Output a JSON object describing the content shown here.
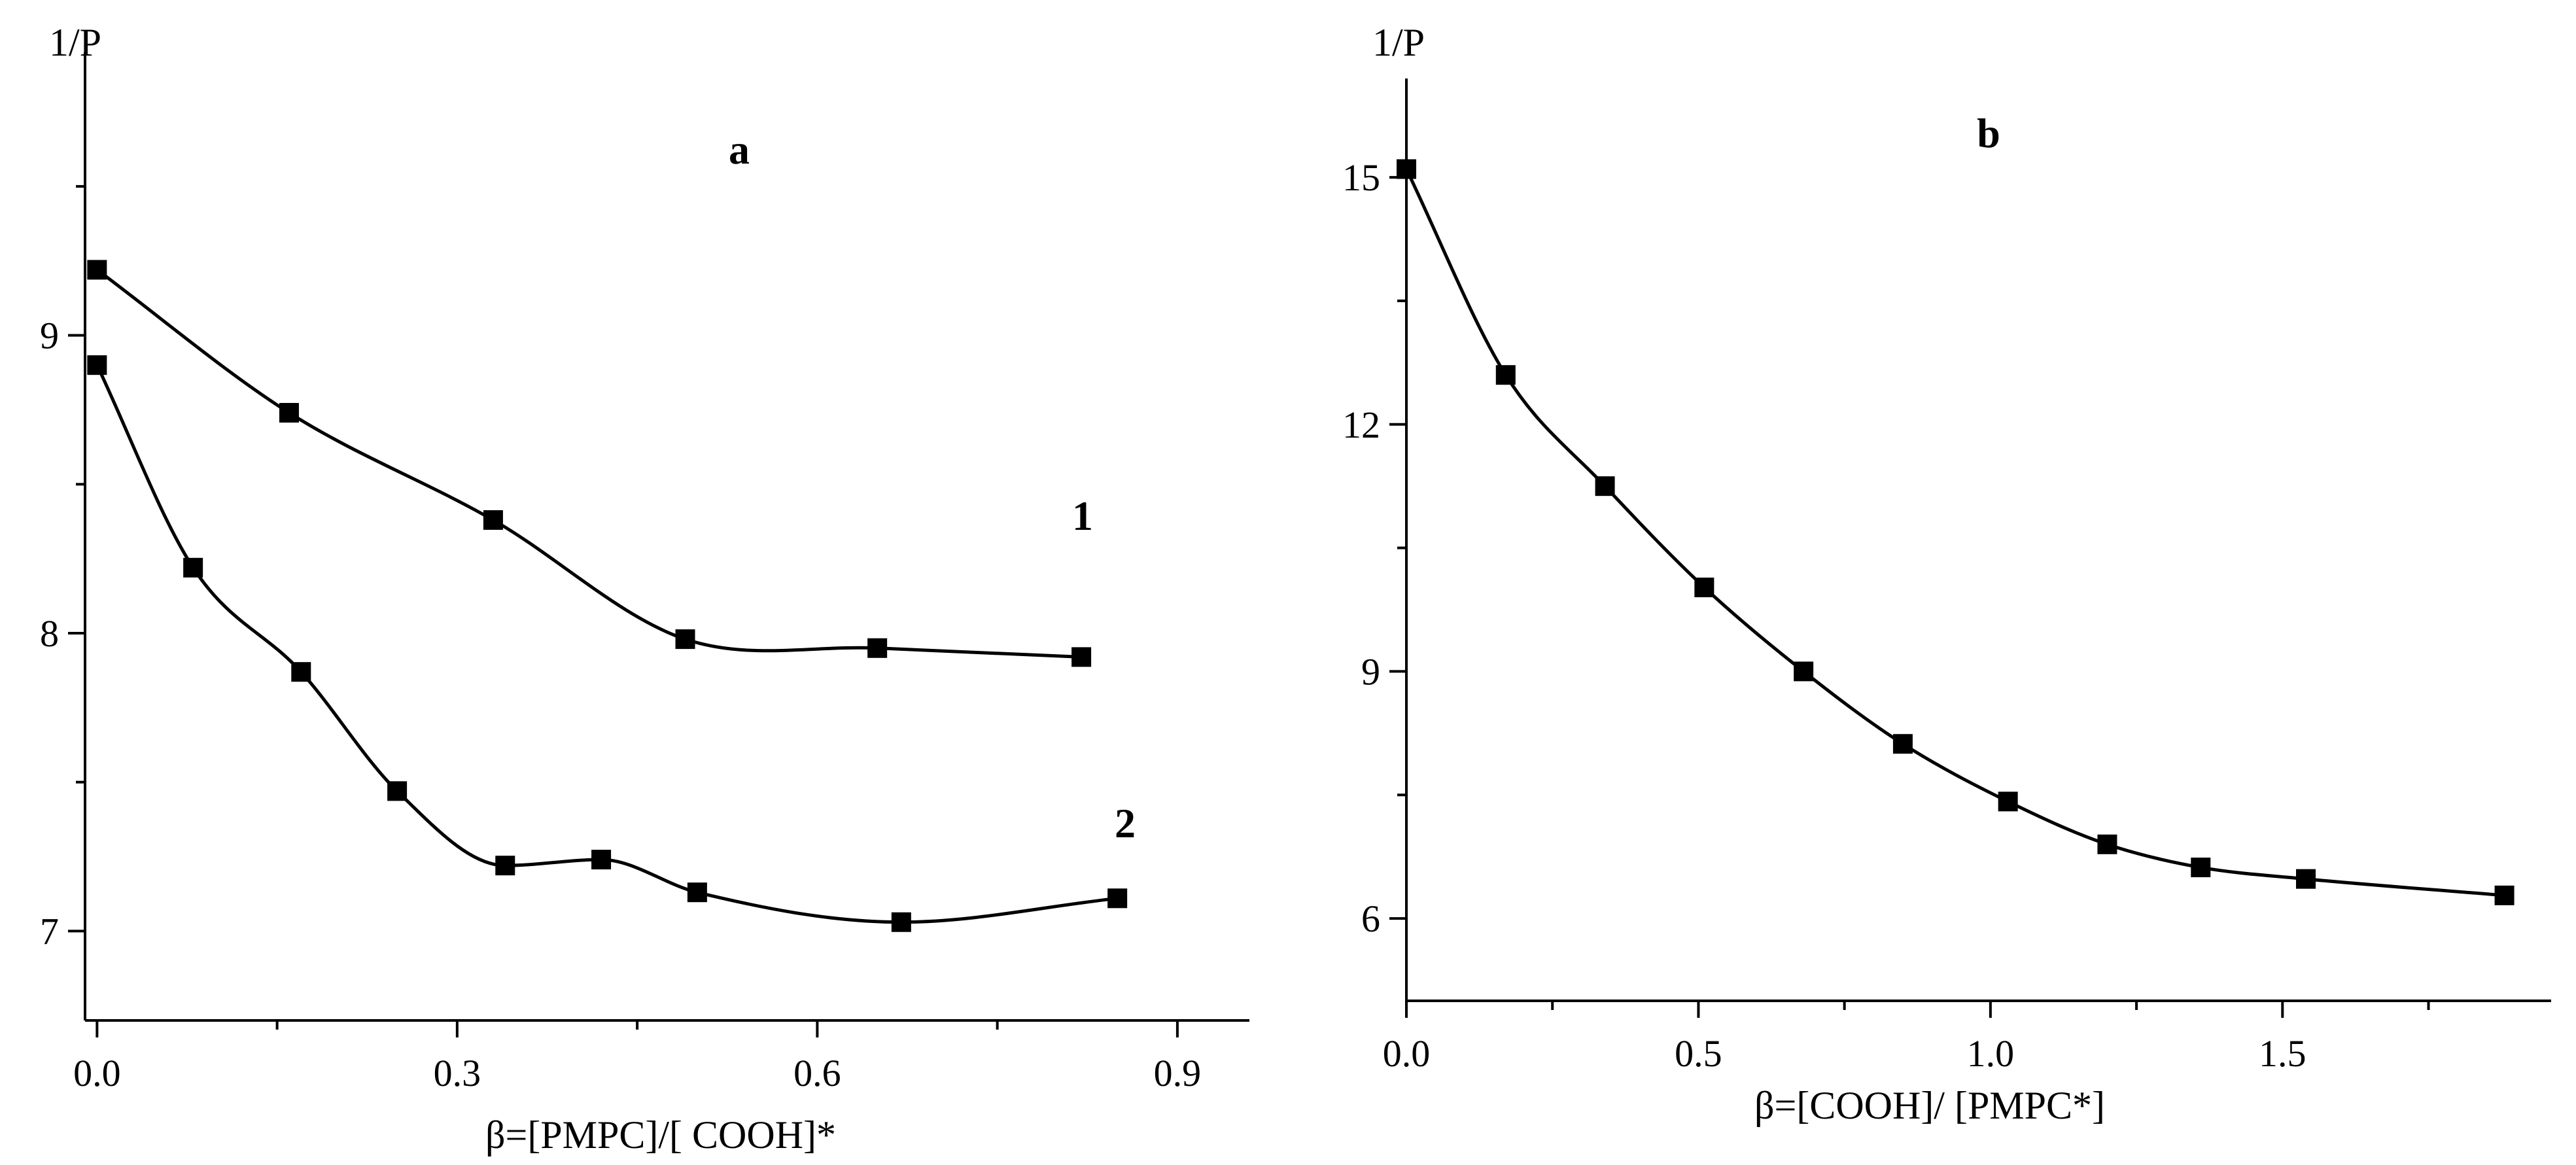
{
  "chart_data": [
    {
      "type": "scatter",
      "panel_label": "a",
      "title": "",
      "xlabel": "β=[PMPC]/[ COOH]*",
      "ylabel": "1/P",
      "xlim": [
        -0.01,
        0.96
      ],
      "ylim": [
        6.7,
        9.95
      ],
      "xticks": [
        0.0,
        0.3,
        0.6,
        0.9
      ],
      "xtick_labels": [
        "0.0",
        "0.3",
        "0.6",
        "0.9"
      ],
      "yticks": [
        7,
        8,
        9
      ],
      "ytick_labels": [
        "7",
        "8",
        "9"
      ],
      "grid": false,
      "series": [
        {
          "name": "1",
          "x": [
            0.0,
            0.16,
            0.33,
            0.49,
            0.65,
            0.82
          ],
          "y": [
            9.22,
            8.74,
            8.38,
            7.98,
            7.95,
            7.92
          ],
          "fit": true
        },
        {
          "name": "2",
          "x": [
            0.0,
            0.08,
            0.17,
            0.25,
            0.34,
            0.42,
            0.5,
            0.67,
            0.85
          ],
          "y": [
            8.9,
            8.22,
            7.87,
            7.47,
            7.22,
            7.24,
            7.13,
            7.03,
            7.11
          ],
          "fit": true
        }
      ]
    },
    {
      "type": "scatter",
      "panel_label": "b",
      "title": "",
      "xlabel": "β=[COOH]/ [PMPC*]",
      "ylabel": "1/P",
      "xlim": [
        0.0,
        1.96
      ],
      "ylim": [
        5.0,
        16.2
      ],
      "xticks": [
        0.0,
        0.5,
        1.0,
        1.5
      ],
      "xtick_labels": [
        "0.0",
        "0.5",
        "1.0",
        "1.5"
      ],
      "yticks": [
        6,
        9,
        12,
        15
      ],
      "ytick_labels": [
        "6",
        "9",
        "12",
        "15"
      ],
      "grid": false,
      "series": [
        {
          "name": "",
          "x": [
            0.0,
            0.17,
            0.34,
            0.51,
            0.68,
            0.85,
            1.03,
            1.2,
            1.36,
            1.54,
            1.88
          ],
          "y": [
            15.1,
            12.6,
            11.25,
            10.02,
            9.0,
            8.12,
            7.42,
            6.9,
            6.62,
            6.48,
            6.28
          ],
          "fit": true
        }
      ]
    }
  ]
}
